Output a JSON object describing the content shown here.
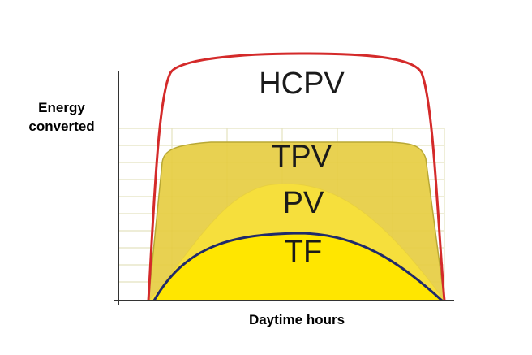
{
  "y_axis_label": [
    "Energy",
    "converted"
  ],
  "x_axis_label": "Daytime hours",
  "curves": [
    {
      "label": "HCPV"
    },
    {
      "label": "TPV"
    },
    {
      "label": "PV"
    },
    {
      "label": "TF"
    }
  ]
}
